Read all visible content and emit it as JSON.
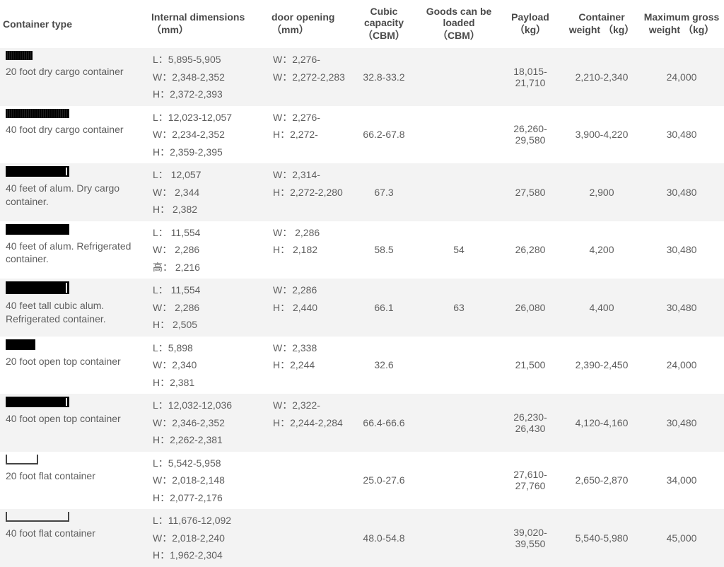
{
  "headers": {
    "type": "Container type",
    "dim": "Internal dimensions （mm）",
    "door": "door opening （mm）",
    "cubic": "Cubic capacity （CBM）",
    "goods": "Goods can be loaded （CBM）",
    "pay": "Payload （kg）",
    "cw": "Container weight （kg）",
    "max": "Maximum gross weight （kg）"
  },
  "rows": [
    {
      "icon": "ico-dry20",
      "label": "20 foot dry cargo container",
      "dims": [
        "L：5,895-5,905",
        "W：2,348-2,352",
        "H：2,372-2,393"
      ],
      "door": [
        "W：2,276-",
        "W：2,272-2,283"
      ],
      "cubic": "32.8-33.2",
      "goods": "",
      "pay": "18,015-21,710",
      "cw": "2,210-2,340",
      "max": "24,000"
    },
    {
      "icon": "ico-dry40",
      "label": "40 foot dry cargo container",
      "dims": [
        "L：12,023-12,057",
        "W：2,234-2,352",
        "H：2,359-2,395"
      ],
      "door": [
        "W：2,276-",
        "H：2,272-"
      ],
      "cubic": "66.2-67.8",
      "goods": "",
      "pay": "26,260-29,580",
      "cw": "3,900-4,220",
      "max": "30,480"
    },
    {
      "icon": "ico-alum40",
      "label": "40 feet of alum. Dry cargo container.",
      "dims": [
        "L： 12,057",
        "W： 2,344",
        "H： 2,382"
      ],
      "door": [
        "W：2,314-",
        "H：2,272-2,280"
      ],
      "cubic": "67.3",
      "goods": "",
      "pay": "27,580",
      "cw": "2,900",
      "max": "30,480"
    },
    {
      "icon": "ico-reef40",
      "label": "40 feet of alum. Refrigerated container.",
      "dims": [
        "L： 11,554",
        "W： 2,286",
        "高： 2,216"
      ],
      "door": [
        "W： 2,286",
        "H： 2,182"
      ],
      "cubic": "58.5",
      "goods": "54",
      "pay": "26,280",
      "cw": "4,200",
      "max": "30,480"
    },
    {
      "icon": "ico-reef40hc",
      "label": "40 feet tall cubic alum. Refrigerated container.",
      "dims": [
        "L： 11,554",
        "W： 2,286",
        "H： 2,505"
      ],
      "door": [
        "W：2,286",
        "H： 2,440"
      ],
      "cubic": "66.1",
      "goods": "63",
      "pay": "26,080",
      "cw": "4,400",
      "max": "30,480"
    },
    {
      "icon": "ico-ot20",
      "label": "20 foot open top container",
      "dims": [
        "L：5,898",
        "W：2,340",
        "H：2,381"
      ],
      "door": [
        "W：2,338",
        "H：2,244"
      ],
      "cubic": "32.6",
      "goods": "",
      "pay": "21,500",
      "cw": "2,390-2,450",
      "max": "24,000"
    },
    {
      "icon": "ico-ot40",
      "label": "40 foot open top container",
      "dims": [
        "L：12,032-12,036",
        "W：2,346-2,352",
        "H：2,262-2,381"
      ],
      "door": [
        "W：2,322-",
        "H：2,244-2,284"
      ],
      "cubic": "66.4-66.6",
      "goods": "",
      "pay": "26,230-26,430",
      "cw": "4,120-4,160",
      "max": "30,480"
    },
    {
      "icon": "ico-flat20",
      "label": "20 foot flat container",
      "dims": [
        "L：5,542-5,958",
        "W：2,018-2,148",
        "H：2,077-2,176"
      ],
      "door": [],
      "cubic": "25.0-27.6",
      "goods": "",
      "pay": "27,610-27,760",
      "cw": "2,650-2,870",
      "max": "34,000"
    },
    {
      "icon": "ico-flat40",
      "label": "40 foot flat container",
      "dims": [
        "L：11,676-12,092",
        "W：2,018-2,240",
        "H：1,962-2,304"
      ],
      "door": [],
      "cubic": "48.0-54.8",
      "goods": "",
      "pay": "39,020-39,550",
      "cw": "5,540-5,980",
      "max": "45,000"
    }
  ]
}
